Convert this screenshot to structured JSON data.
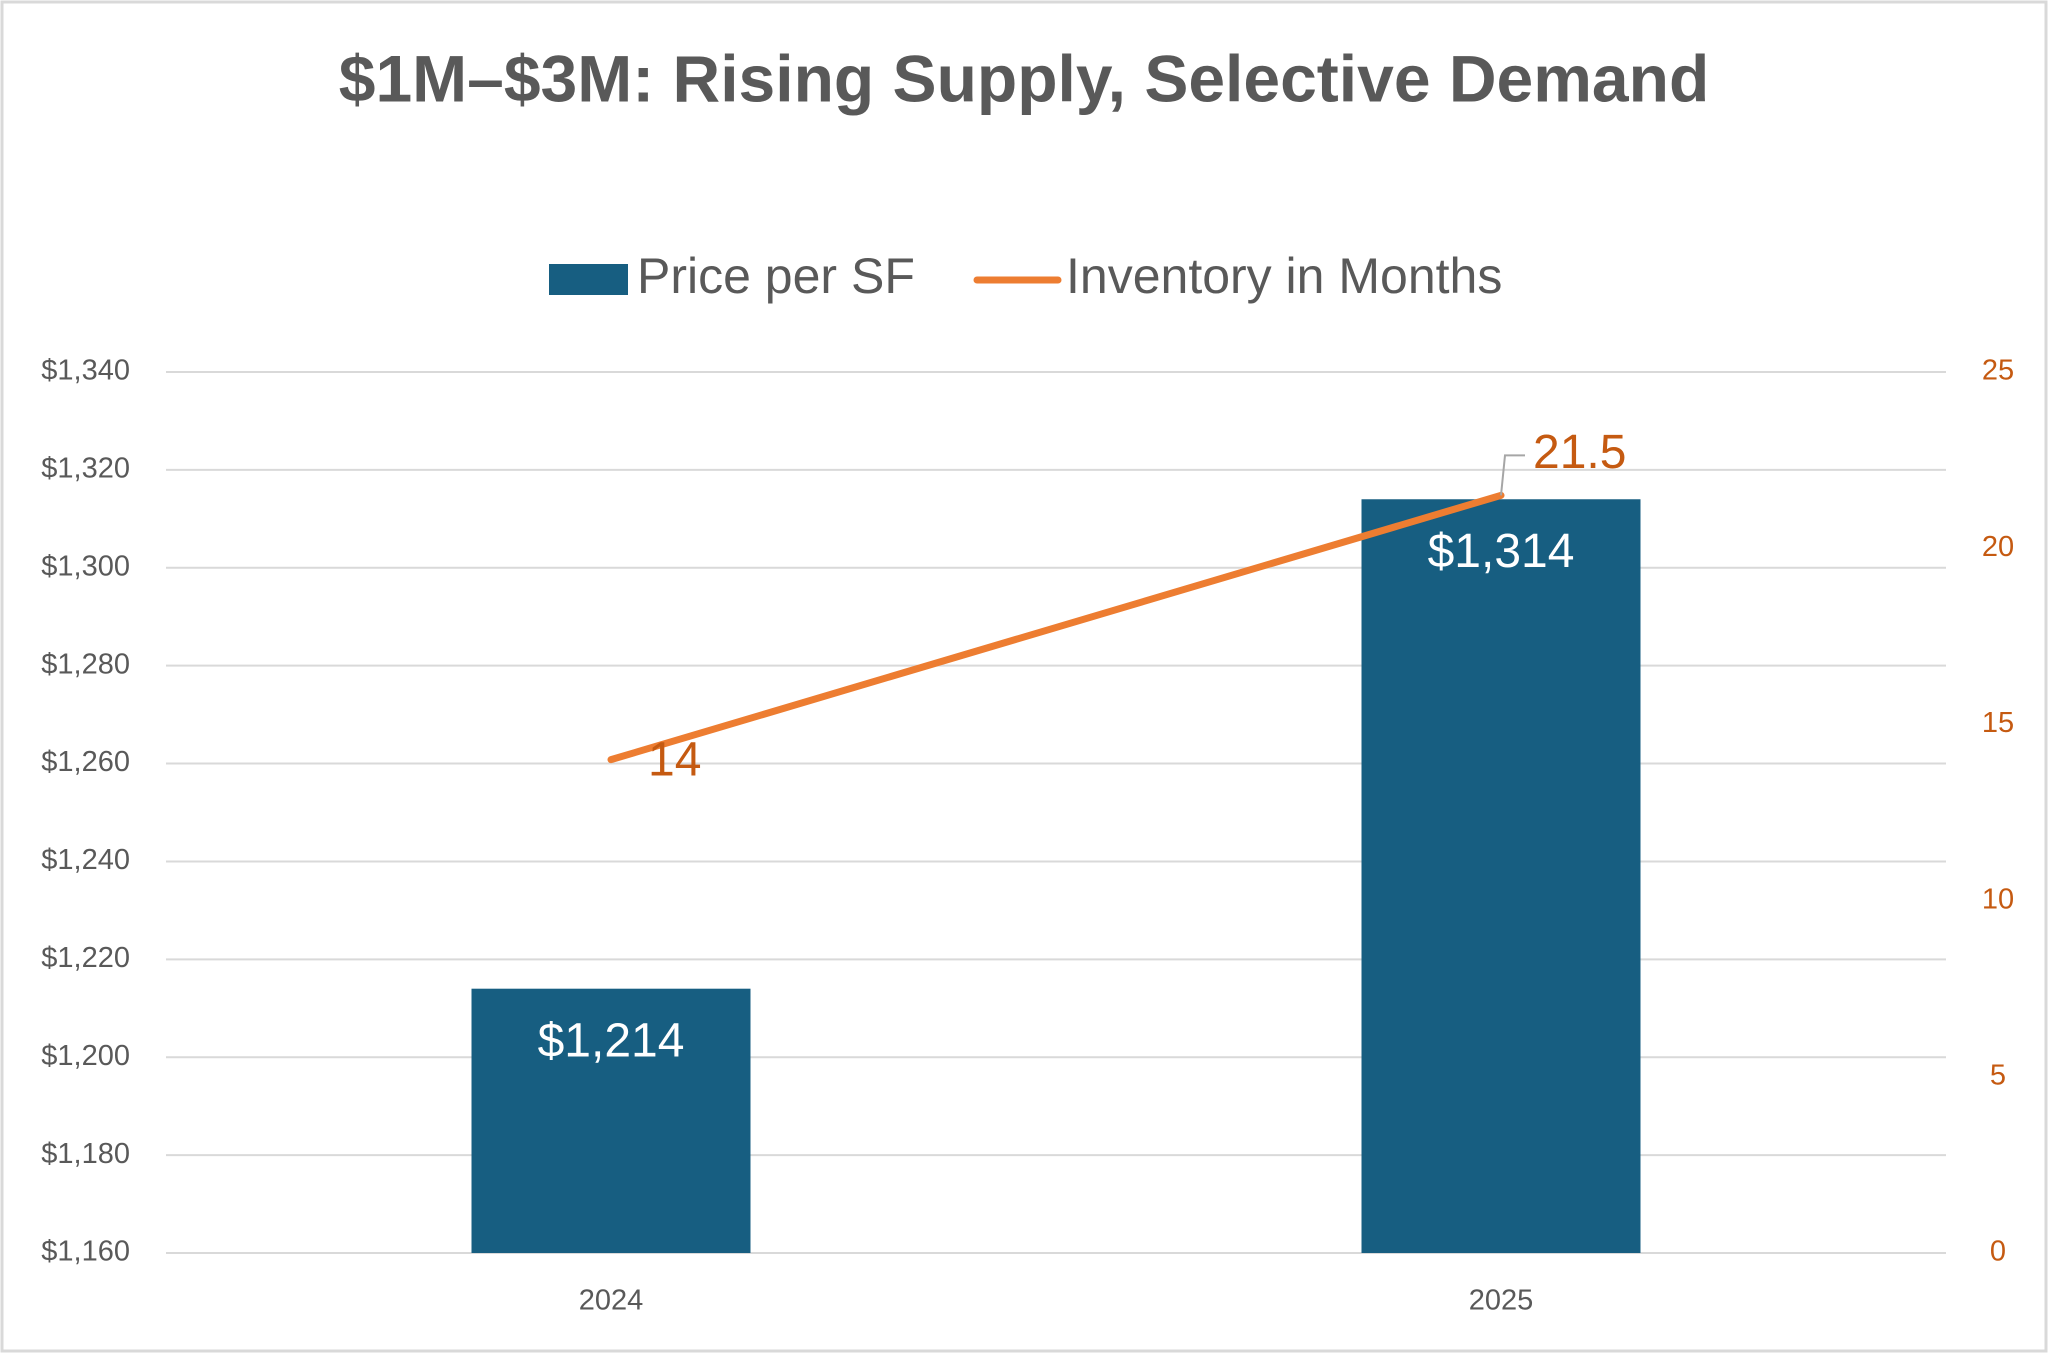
{
  "chart_data": {
    "type": "bar",
    "title": "$1M–$3M: Rising Supply, Selective Demand",
    "categories": [
      "2024",
      "2025"
    ],
    "series": [
      {
        "name": "Price per SF",
        "type": "bar",
        "color": "#175e81",
        "values": [
          1214,
          1314
        ],
        "value_labels": [
          "$1,214",
          "$1,314"
        ]
      },
      {
        "name": "Inventory in Months",
        "type": "line",
        "axis": "y2",
        "color": "#ed7d31",
        "values": [
          14,
          21.5
        ]
      }
    ],
    "ylim": [
      1160,
      1340
    ],
    "yticks": [
      {
        "value": 1160,
        "label": "$1,160"
      },
      {
        "value": 1180,
        "label": "$1,180"
      },
      {
        "value": 1200,
        "label": "$1,200"
      },
      {
        "value": 1220,
        "label": "$1,220"
      },
      {
        "value": 1240,
        "label": "$1,240"
      },
      {
        "value": 1260,
        "label": "$1,260"
      },
      {
        "value": 1280,
        "label": "$1,280"
      },
      {
        "value": 1300,
        "label": "$1,300"
      },
      {
        "value": 1320,
        "label": "$1,320"
      },
      {
        "value": 1340,
        "label": "$1,340"
      }
    ],
    "y2lim": [
      0,
      25
    ],
    "y2ticks": [
      0,
      5,
      10,
      15,
      20,
      25
    ],
    "y2_color": "#c55a11",
    "grid": true,
    "legend": "top"
  }
}
